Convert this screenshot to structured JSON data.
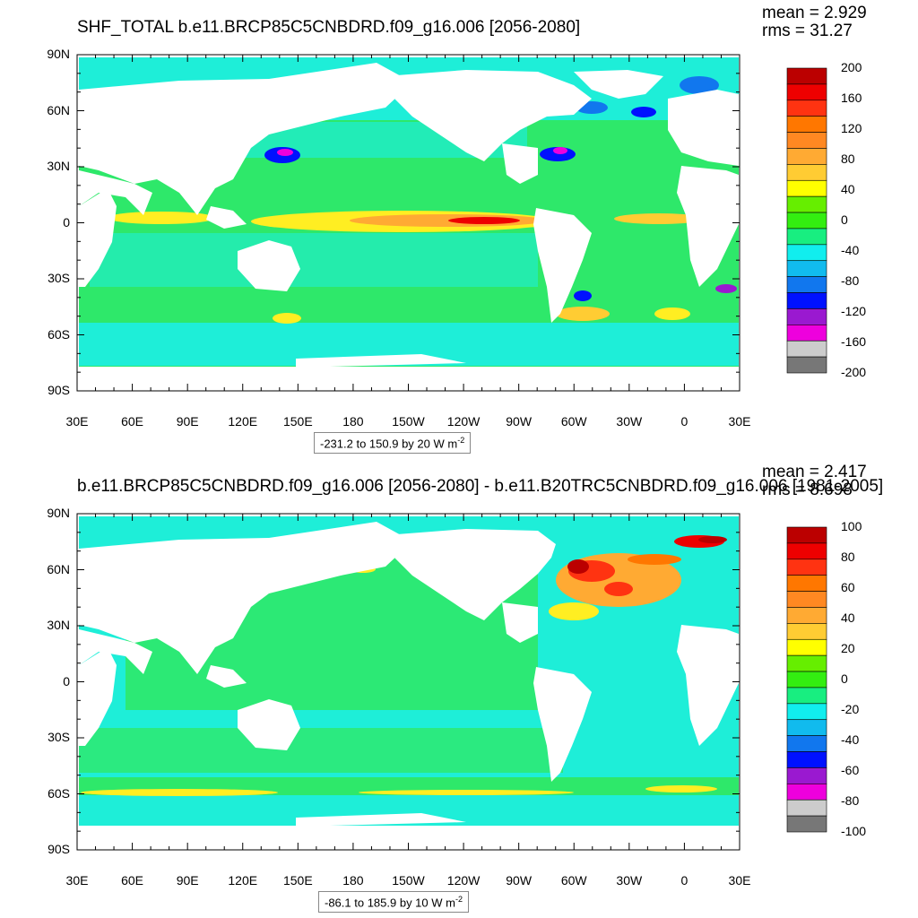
{
  "panels": [
    {
      "title": "SHF_TOTAL b.e11.BRCP85C5CNBDRD.f09_g16.006 [2056-2080]",
      "stats": {
        "mean": "mean = 2.929",
        "rms": "rms = 31.27"
      },
      "footer": {
        "text": "-231.2 to 150.9 by 20  W m",
        "exp": "-2"
      },
      "colorbar_labels": [
        "200",
        "160",
        "120",
        "80",
        "40",
        "0",
        "-40",
        "-80",
        "-120",
        "-160",
        "-200"
      ]
    },
    {
      "title": "b.e11.BRCP85C5CNBDRD.f09_g16.006 [2056-2080] - b.e11.B20TRC5CNBDRD.f09_g16.006 [1981-2005]",
      "stats": {
        "mean": "mean = 2.417",
        "rms": "rms = 8.698"
      },
      "footer": {
        "text": "-86.1 to 185.9 by 10  W m",
        "exp": "-2"
      },
      "colorbar_labels": [
        "100",
        "80",
        "60",
        "40",
        "20",
        "0",
        "-20",
        "-40",
        "-60",
        "-80",
        "-100"
      ]
    }
  ],
  "axes": {
    "lat_ticks": [
      "90N",
      "60N",
      "30N",
      "0",
      "30S",
      "60S",
      "90S"
    ],
    "lon_ticks": [
      "30E",
      "60E",
      "90E",
      "120E",
      "150E",
      "180",
      "150W",
      "120W",
      "90W",
      "60W",
      "30W",
      "0",
      "30E"
    ]
  },
  "chart_data": [
    {
      "type": "heatmap",
      "title": "SHF_TOTAL b.e11.BRCP85C5CNBDRD.f09_g16.006 [2056-2080]",
      "units": "W m-2",
      "mean": 2.929,
      "rms": 31.27,
      "data_min": -231.2,
      "data_max": 150.9,
      "contour_interval": 20,
      "color_levels": [
        -200,
        -160,
        -120,
        -80,
        -40,
        0,
        40,
        80,
        120,
        160,
        200
      ],
      "xlim": [
        "30E",
        "30E"
      ],
      "ylim": [
        "90S",
        "90N"
      ]
    },
    {
      "type": "heatmap",
      "title": "b.e11.BRCP85C5CNBDRD.f09_g16.006 [2056-2080] - b.e11.B20TRC5CNBDRD.f09_g16.006 [1981-2005]",
      "units": "W m-2",
      "mean": 2.417,
      "rms": 8.698,
      "data_min": -86.1,
      "data_max": 185.9,
      "contour_interval": 10,
      "color_levels": [
        -100,
        -80,
        -60,
        -40,
        -20,
        0,
        20,
        40,
        60,
        80,
        100
      ],
      "xlim": [
        "30E",
        "30E"
      ],
      "ylim": [
        "90S",
        "90N"
      ]
    }
  ],
  "colors": {
    "colorbar": [
      "#777777",
      "#cccccc",
      "#ee00dd",
      "#9a19d0",
      "#0011ff",
      "#1177ee",
      "#11bbee",
      "#11eeee",
      "#18ee80",
      "#33ee11",
      "#66ee00",
      "#ffff00",
      "#ffcc33",
      "#ffaa33",
      "#ff8822",
      "#ff7700",
      "#ff3311",
      "#ee0000",
      "#bb0000"
    ],
    "ocean_base": "#2ee86a",
    "ocean_light": "#1eeed8",
    "land": "#ffffff"
  }
}
